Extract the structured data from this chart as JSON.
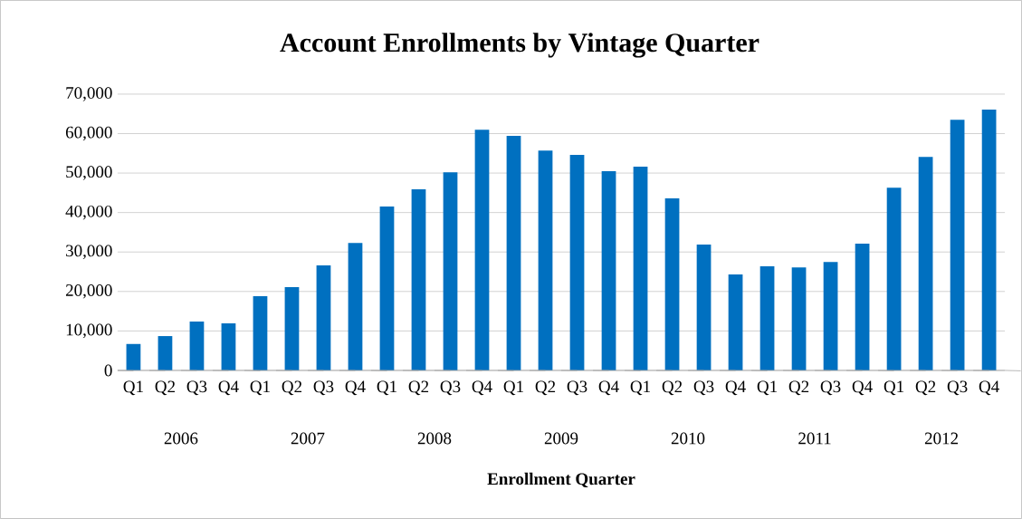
{
  "chart_data": {
    "type": "bar",
    "title": "Account Enrollments by Vintage Quarter",
    "xlabel": "Enrollment Quarter",
    "categories": [
      "Q1",
      "Q2",
      "Q3",
      "Q4",
      "Q1",
      "Q2",
      "Q3",
      "Q4",
      "Q1",
      "Q2",
      "Q3",
      "Q4",
      "Q1",
      "Q2",
      "Q3",
      "Q4",
      "Q1",
      "Q2",
      "Q3",
      "Q4",
      "Q1",
      "Q2",
      "Q3",
      "Q4",
      "Q1",
      "Q2",
      "Q3",
      "Q4"
    ],
    "values": [
      6700,
      8700,
      12400,
      11900,
      18800,
      21100,
      26600,
      32300,
      41500,
      45900,
      50200,
      61000,
      59400,
      55700,
      54600,
      50500,
      51600,
      43600,
      31900,
      24300,
      26400,
      26100,
      27500,
      32100,
      46300,
      54100,
      63500,
      66100
    ],
    "color": "#0070c0",
    "annotations": [
      "2006",
      "2007",
      "2008",
      "2009",
      "2010",
      "2011",
      "2012"
    ],
    "ylim": [
      0,
      70000
    ],
    "yticks": [
      {
        "value": 0,
        "label": "0"
      },
      {
        "value": 10000,
        "label": "10,000"
      },
      {
        "value": 20000,
        "label": "20,000"
      },
      {
        "value": 30000,
        "label": "30,000"
      },
      {
        "value": 40000,
        "label": "40,000"
      },
      {
        "value": 50000,
        "label": "50,000"
      },
      {
        "value": 60000,
        "label": "60,000"
      },
      {
        "value": 70000,
        "label": "70,000"
      }
    ],
    "grid": "y"
  }
}
